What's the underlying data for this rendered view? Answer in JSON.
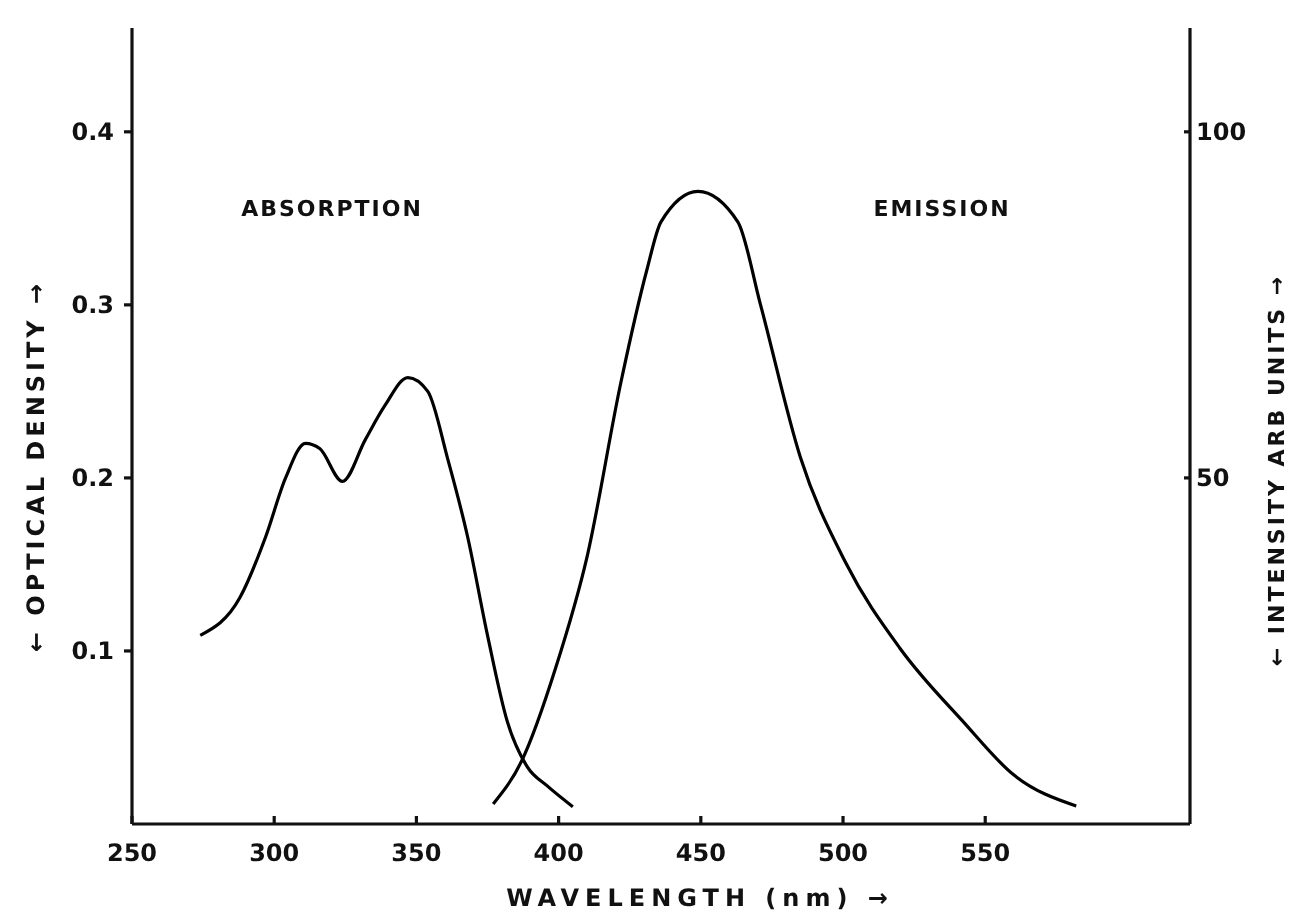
{
  "chart_data": {
    "type": "line",
    "xlabel": "WAVELENGTH (nm) →",
    "ylabel": "← OPTICAL DENSITY →",
    "y2label": "← INTENSITY ARB UNITS →",
    "xlim": [
      250,
      622
    ],
    "xticks": [
      250,
      300,
      350,
      400,
      450,
      500,
      550
    ],
    "ylim": [
      0,
      0.46
    ],
    "yticks": [
      0.1,
      0.2,
      0.3,
      0.4
    ],
    "y2lim": [
      0,
      115
    ],
    "y2ticks": [
      50,
      100
    ],
    "annotations": [
      "ABSORPTION",
      "EMISSION"
    ],
    "grid": false,
    "legend": false,
    "marker": "none",
    "line_style": "solid",
    "series": [
      {
        "color": "#000000",
        "x": [
          274,
          288,
          297,
          304,
          311,
          316,
          324,
          332,
          339,
          347,
          354,
          361,
          368,
          375,
          382,
          389,
          396,
          405
        ],
        "values": [
          0.109,
          0.131,
          0.166,
          0.2,
          0.22,
          0.217,
          0.198,
          0.222,
          0.242,
          0.258,
          0.25,
          0.211,
          0.166,
          0.109,
          0.059,
          0.033,
          0.022,
          0.01
        ]
      },
      {
        "color": "#000000",
        "axis": "y2",
        "x": [
          377,
          387,
          399,
          410,
          422,
          431,
          436,
          449,
          463,
          471,
          485,
          501,
          520,
          542,
          560,
          582
        ],
        "values": [
          2.9,
          9.1,
          22.6,
          38.6,
          64,
          80,
          87,
          91.4,
          87,
          75,
          53,
          37.7,
          25.4,
          14.9,
          7.1,
          2.6
        ]
      }
    ]
  }
}
